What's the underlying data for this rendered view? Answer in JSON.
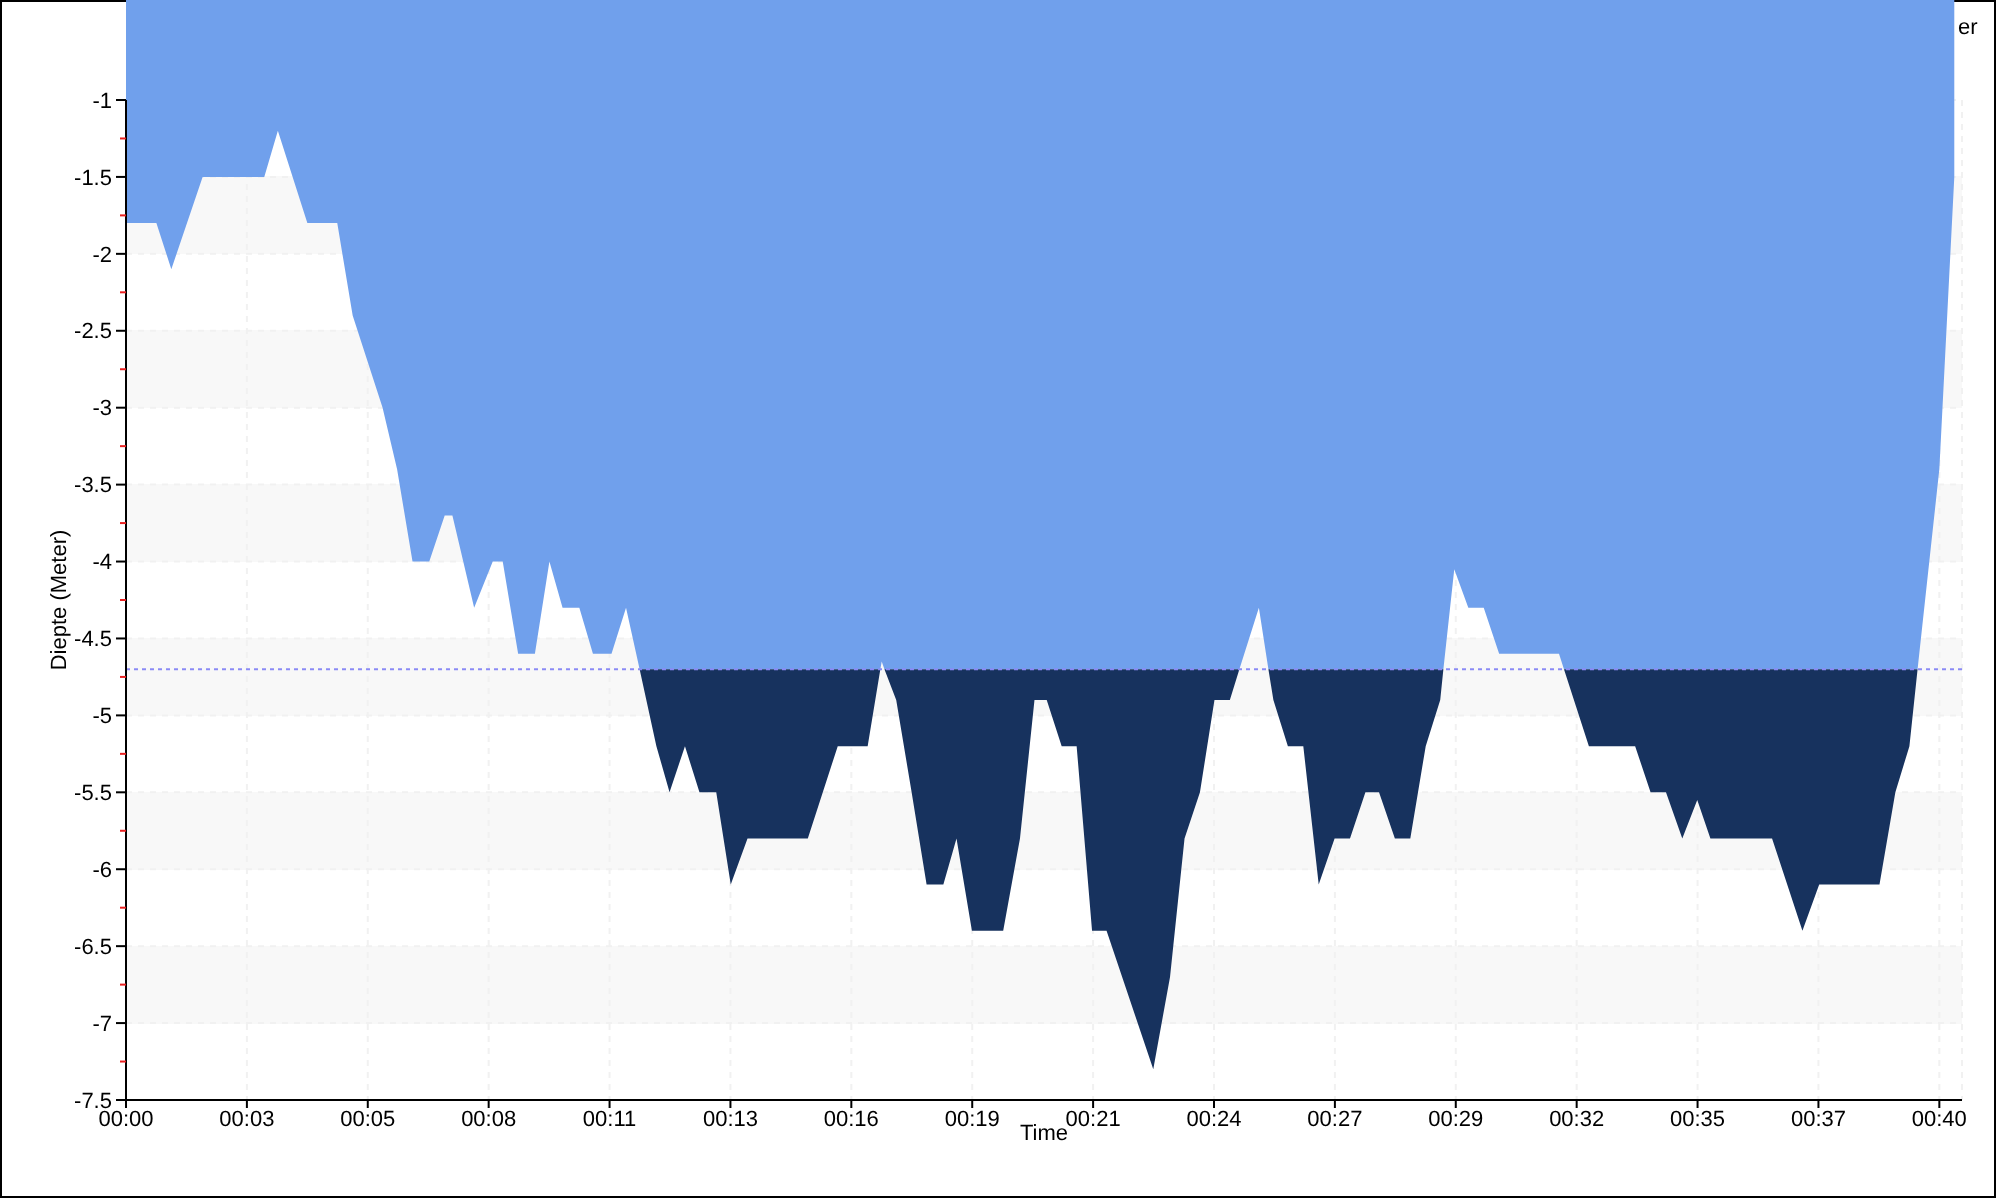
{
  "chart_data": {
    "type": "area",
    "xlabel": "Time",
    "ylabel": "Diepte (Meter)",
    "annotations": [
      "er"
    ],
    "x": [
      0,
      0.67,
      1.0,
      1.69,
      3.05,
      3.35,
      4.0,
      4.66,
      5.0,
      5.66,
      5.98,
      6.32,
      6.69,
      7.03,
      7.2,
      7.68,
      8.09,
      8.31,
      8.65,
      9.02,
      9.34,
      9.63,
      10.0,
      10.3,
      10.71,
      11.03,
      11.33,
      11.7,
      11.99,
      12.33,
      12.65,
      13.02,
      13.34,
      13.71,
      15.04,
      15.7,
      16.36,
      16.64,
      16.67,
      16.73,
      16.99,
      17.33,
      17.66,
      18.03,
      18.32,
      18.66,
      19.35,
      19.72,
      20.04,
      20.31,
      20.64,
      20.97,
      21.31,
      21.63,
      22.66,
      23.03,
      23.35,
      23.69,
      24.01,
      24.35,
      24.56,
      24.99,
      25.2,
      25.31,
      25.63,
      25.97,
      26.31,
      26.66,
      27.0,
      27.34,
      27.64,
      27.99,
      28.33,
      28.67,
      28.99,
      29.06,
      29.3,
      29.61,
      29.95,
      30.29,
      31.61,
      31.72,
      32.27,
      33.29,
      33.63,
      33.97,
      34.33,
      34.66,
      34.95,
      36.31,
      36.98,
      37.35,
      38.68,
      39.03,
      39.34,
      39.52,
      40.0,
      40.33
    ],
    "series": [
      {
        "color": "#70a0ec",
        "values": [
          -1.8,
          -1.8,
          -2.1,
          -1.5,
          -1.5,
          -1.2,
          -1.8,
          -1.8,
          -2.4,
          -3.0,
          -3.4,
          -4.0,
          -4.0,
          -3.7,
          -3.7,
          -4.3,
          -4.0,
          -4.0,
          -4.6,
          -4.6,
          -4.0,
          -4.3,
          -4.3,
          -4.6,
          -4.6,
          -4.3,
          -4.7,
          -4.7,
          -4.7,
          -4.7,
          -4.7,
          -4.7,
          -4.7,
          -4.7,
          -4.7,
          -4.7,
          -4.7,
          -4.7,
          -4.65,
          -4.7,
          -4.7,
          -4.7,
          -4.7,
          -4.7,
          -4.7,
          -4.7,
          -4.7,
          -4.7,
          -4.7,
          -4.7,
          -4.7,
          -4.7,
          -4.7,
          -4.7,
          -4.7,
          -4.7,
          -4.7,
          -4.7,
          -4.7,
          -4.7,
          -4.7,
          -4.3,
          -4.7,
          -4.7,
          -4.7,
          -4.7,
          -4.7,
          -4.7,
          -4.7,
          -4.7,
          -4.7,
          -4.7,
          -4.7,
          -4.7,
          -4.7,
          -4.7,
          -4.05,
          -4.3,
          -4.3,
          -4.6,
          -4.6,
          -4.7,
          -4.7,
          -4.7,
          -4.7,
          -4.7,
          -4.7,
          -4.7,
          -4.7,
          -4.7,
          -4.7,
          -4.7,
          -4.7,
          -4.7,
          -4.7,
          -4.7,
          -3.4,
          -1.5
        ]
      },
      {
        "color": "#17325e",
        "x": [
          11.33,
          11.7,
          11.99,
          12.33,
          12.65,
          13.02,
          13.34,
          13.71,
          15.04,
          15.7,
          16.36,
          16.64,
          16.67,
          16.73,
          16.99,
          17.33,
          17.66,
          18.03,
          18.32,
          18.66,
          19.35,
          19.72,
          20.04,
          20.31,
          20.64,
          20.97,
          21.31,
          21.63,
          22.66,
          23.03,
          23.35,
          23.69,
          24.01,
          24.35,
          24.56,
          24.99,
          25.2,
          25.31,
          25.63,
          25.97,
          26.31,
          26.66,
          27.0,
          27.34,
          27.64,
          27.99,
          28.33,
          28.67,
          28.99,
          29.06,
          30.29,
          31.72,
          32.27,
          33.29,
          33.63,
          33.97,
          34.33,
          34.66,
          34.95,
          36.31,
          36.98,
          37.35,
          38.68,
          39.03,
          39.34,
          39.52
        ],
        "values": [
          -4.7,
          -5.2,
          -5.5,
          -5.2,
          -5.5,
          -5.5,
          -6.1,
          -5.8,
          -5.8,
          -5.2,
          -5.2,
          -4.7,
          null,
          -4.7,
          -4.9,
          -5.5,
          -6.1,
          -6.1,
          -5.8,
          -6.4,
          -6.4,
          -5.8,
          -4.9,
          -4.9,
          -5.2,
          -5.2,
          -6.4,
          -6.4,
          -7.3,
          -6.7,
          -5.8,
          -5.5,
          -4.9,
          -4.9,
          -4.7,
          null,
          -4.7,
          -4.9,
          -5.2,
          -5.2,
          -6.1,
          -5.8,
          -5.8,
          -5.5,
          -5.5,
          -5.8,
          -5.8,
          -5.2,
          -4.9,
          -4.7,
          null,
          -4.7,
          -5.2,
          -5.2,
          -5.5,
          -5.5,
          -5.8,
          -5.55,
          -5.8,
          -5.8,
          -6.4,
          -6.1,
          -6.1,
          -5.5,
          -5.2,
          -4.7
        ]
      }
    ],
    "xlim": [
      0,
      40.5
    ],
    "xticks": [
      {
        "value": 0,
        "label": "00:00"
      },
      {
        "value": 2.6667,
        "label": "00:03"
      },
      {
        "value": 5.3333,
        "label": "00:05"
      },
      {
        "value": 8,
        "label": "00:08"
      },
      {
        "value": 10.6667,
        "label": "00:11"
      },
      {
        "value": 13.3333,
        "label": "00:13"
      },
      {
        "value": 16,
        "label": "00:16"
      },
      {
        "value": 18.6667,
        "label": "00:19"
      },
      {
        "value": 21.3333,
        "label": "00:21"
      },
      {
        "value": 24,
        "label": "00:24"
      },
      {
        "value": 26.6667,
        "label": "00:27"
      },
      {
        "value": 29.3333,
        "label": "00:29"
      },
      {
        "value": 32,
        "label": "00:32"
      },
      {
        "value": 34.6667,
        "label": "00:35"
      },
      {
        "value": 37.3333,
        "label": "00:37"
      },
      {
        "value": 40,
        "label": "00:40"
      }
    ],
    "ylim": [
      -7.5,
      -1
    ],
    "yticks": [
      -1,
      {
        "value": -1.25,
        "label": null
      },
      -1.5,
      {
        "value": -1.75,
        "label": null
      },
      -2,
      {
        "value": -2.25,
        "label": null
      },
      -2.5,
      {
        "value": -2.75,
        "label": null
      },
      -3,
      {
        "value": -3.25,
        "label": null
      },
      -3.5,
      {
        "value": -3.75,
        "label": null
      },
      -4,
      {
        "value": -4.25,
        "label": null
      },
      -4.5,
      {
        "value": -4.75,
        "label": null
      },
      -5,
      {
        "value": -5.25,
        "label": null
      },
      -5.5,
      {
        "value": -5.75,
        "label": null
      },
      -6,
      {
        "value": -6.25,
        "label": null
      },
      -6.5,
      {
        "value": -6.75,
        "label": null
      },
      -7,
      {
        "value": -7.25,
        "label": null
      },
      -7.5
    ],
    "ref_lines": [
      {
        "axis": "y",
        "value": -4.7,
        "color": "#8a8af5",
        "line_style": "dotted"
      }
    ],
    "grid": true
  }
}
